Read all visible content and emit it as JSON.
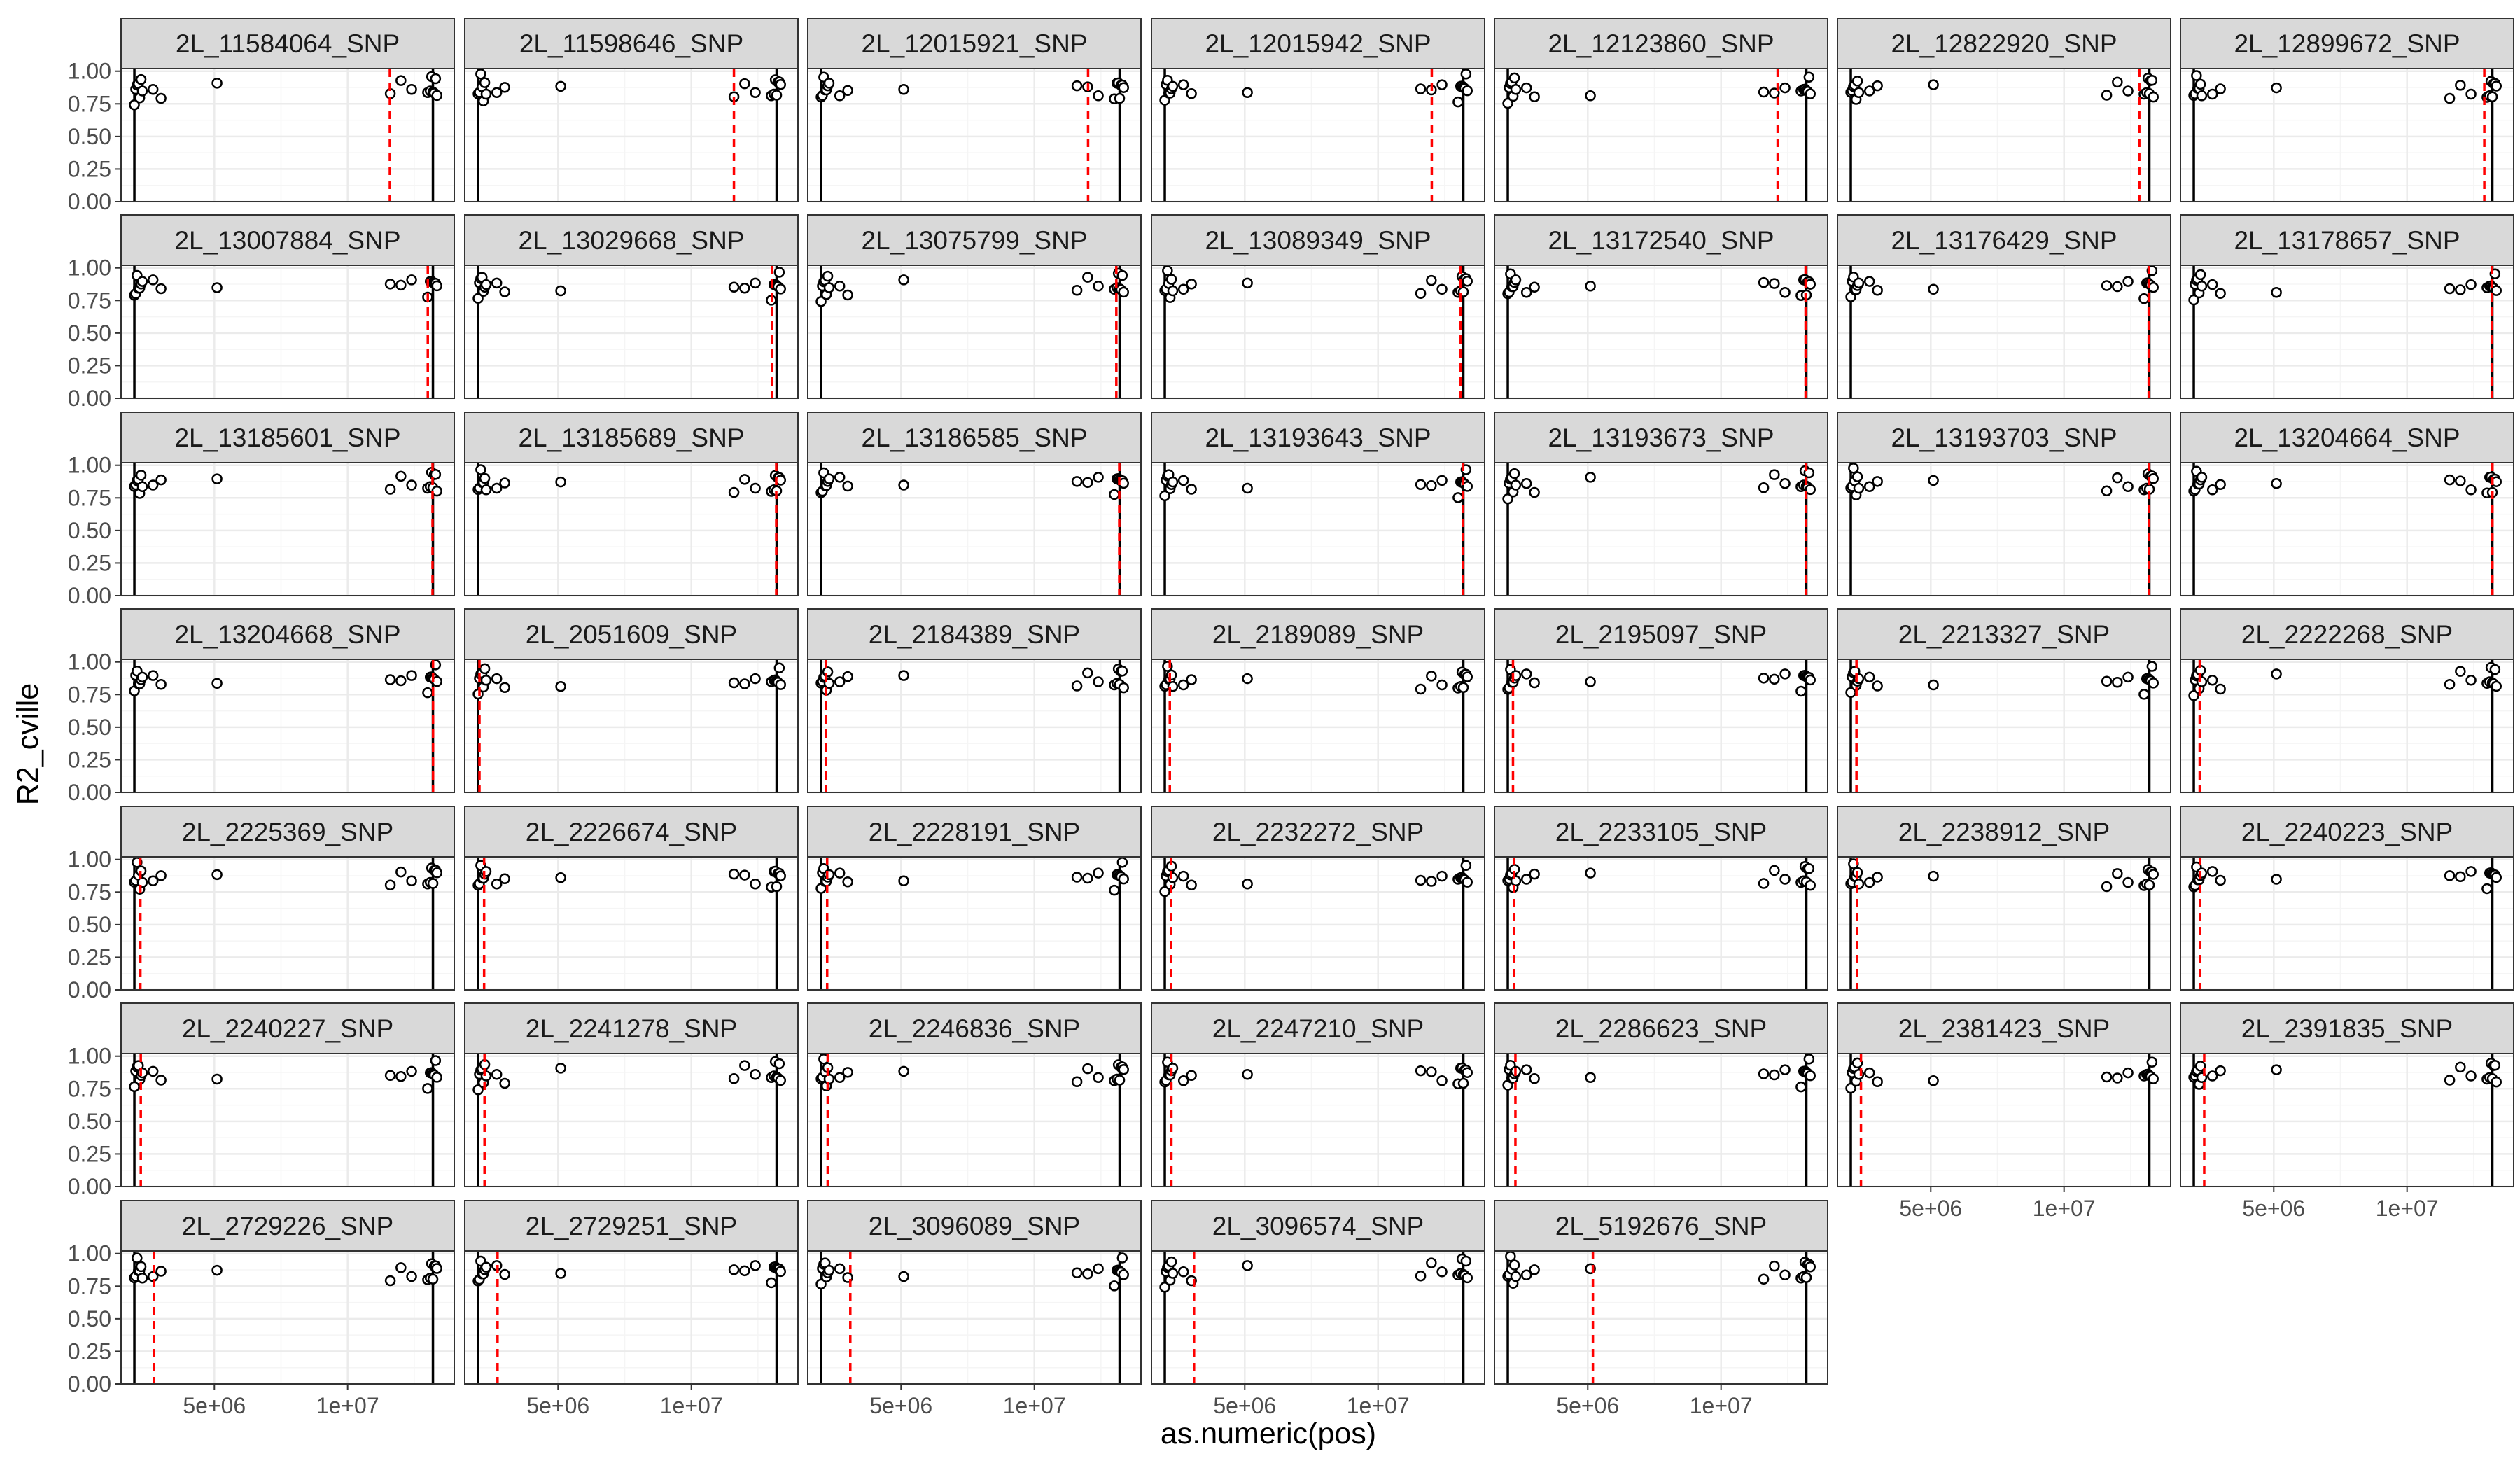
{
  "chart_data": {
    "type": "scatter",
    "facet_by": "SNP",
    "xlabel": "as.numeric(pos)",
    "ylabel": "R2_cville",
    "x_tick_labels": [
      "5e+06",
      "1e+07"
    ],
    "x_ticks": [
      5000000,
      10000000
    ],
    "xlim": [
      1500000,
      14000000
    ],
    "y_ticks": [
      0,
      0.25,
      0.5,
      0.75,
      1
    ],
    "y_tick_labels": [
      "0.00",
      "0.25",
      "0.50",
      "0.75",
      "1.00"
    ],
    "ylim": [
      0,
      1.02
    ],
    "grid": true,
    "boundary_lines": [
      2000000,
      13200000
    ],
    "marker_line": "red dashed vertical line at SNP position",
    "point_clusters": [
      {
        "x": [
          2000000,
          2050000,
          2100000,
          2150000,
          2200000,
          2250000,
          2300000
        ],
        "base": [
          0.79,
          0.85,
          0.93,
          0.88,
          0.82,
          0.9,
          0.86
        ]
      },
      {
        "x": [
          2700000,
          3000000
        ],
        "base": [
          0.86,
          0.84
        ]
      },
      {
        "x": [
          5100000
        ],
        "base": [
          0.86
        ]
      },
      {
        "x": [
          11600000,
          12000000,
          12400000
        ],
        "base": [
          0.84,
          0.88,
          0.86
        ]
      },
      {
        "x": [
          13000000,
          13100000,
          13150000,
          13200000,
          13250000,
          13300000,
          13350000
        ],
        "base": [
          0.8,
          0.86,
          0.91,
          0.84,
          0.88,
          0.93,
          0.85
        ]
      }
    ],
    "panels": [
      {
        "snp": "2L_11584064_SNP",
        "pos": 11584064
      },
      {
        "snp": "2L_11598646_SNP",
        "pos": 11598646
      },
      {
        "snp": "2L_12015921_SNP",
        "pos": 12015921
      },
      {
        "snp": "2L_12015942_SNP",
        "pos": 12015942
      },
      {
        "snp": "2L_12123860_SNP",
        "pos": 12123860
      },
      {
        "snp": "2L_12822920_SNP",
        "pos": 12822920
      },
      {
        "snp": "2L_12899672_SNP",
        "pos": 12899672
      },
      {
        "snp": "2L_13007884_SNP",
        "pos": 13007884
      },
      {
        "snp": "2L_13029668_SNP",
        "pos": 13029668
      },
      {
        "snp": "2L_13075799_SNP",
        "pos": 13075799
      },
      {
        "snp": "2L_13089349_SNP",
        "pos": 13089349
      },
      {
        "snp": "2L_13172540_SNP",
        "pos": 13172540
      },
      {
        "snp": "2L_13176429_SNP",
        "pos": 13176429
      },
      {
        "snp": "2L_13178657_SNP",
        "pos": 13178657
      },
      {
        "snp": "2L_13185601_SNP",
        "pos": 13185601
      },
      {
        "snp": "2L_13185689_SNP",
        "pos": 13185689
      },
      {
        "snp": "2L_13186585_SNP",
        "pos": 13186585
      },
      {
        "snp": "2L_13193643_SNP",
        "pos": 13193643
      },
      {
        "snp": "2L_13193673_SNP",
        "pos": 13193673
      },
      {
        "snp": "2L_13193703_SNP",
        "pos": 13193703
      },
      {
        "snp": "2L_13204664_SNP",
        "pos": 13204664
      },
      {
        "snp": "2L_13204668_SNP",
        "pos": 13204668
      },
      {
        "snp": "2L_2051609_SNP",
        "pos": 2051609
      },
      {
        "snp": "2L_2184389_SNP",
        "pos": 2184389
      },
      {
        "snp": "2L_2189089_SNP",
        "pos": 2189089
      },
      {
        "snp": "2L_2195097_SNP",
        "pos": 2195097
      },
      {
        "snp": "2L_2213327_SNP",
        "pos": 2213327
      },
      {
        "snp": "2L_2222268_SNP",
        "pos": 2222268
      },
      {
        "snp": "2L_2225369_SNP",
        "pos": 2225369
      },
      {
        "snp": "2L_2226674_SNP",
        "pos": 2226674
      },
      {
        "snp": "2L_2228191_SNP",
        "pos": 2228191
      },
      {
        "snp": "2L_2232272_SNP",
        "pos": 2232272
      },
      {
        "snp": "2L_2233105_SNP",
        "pos": 2233105
      },
      {
        "snp": "2L_2238912_SNP",
        "pos": 2238912
      },
      {
        "snp": "2L_2240223_SNP",
        "pos": 2240223
      },
      {
        "snp": "2L_2240227_SNP",
        "pos": 2240227
      },
      {
        "snp": "2L_2241278_SNP",
        "pos": 2241278
      },
      {
        "snp": "2L_2246836_SNP",
        "pos": 2246836
      },
      {
        "snp": "2L_2247210_SNP",
        "pos": 2247210
      },
      {
        "snp": "2L_2286623_SNP",
        "pos": 2286623
      },
      {
        "snp": "2L_2381423_SNP",
        "pos": 2381423
      },
      {
        "snp": "2L_2391835_SNP",
        "pos": 2391835
      },
      {
        "snp": "2L_2729226_SNP",
        "pos": 2729226
      },
      {
        "snp": "2L_2729251_SNP",
        "pos": 2729251
      },
      {
        "snp": "2L_3096089_SNP",
        "pos": 3096089
      },
      {
        "snp": "2L_3096574_SNP",
        "pos": 3096574
      },
      {
        "snp": "2L_5192676_SNP",
        "pos": 5192676
      }
    ]
  },
  "colors": {
    "strip_fill": "#d9d9d9",
    "panel_border": "#333333",
    "grid_major": "#ebebeb",
    "grid_minor": "#f5f5f5",
    "point_stroke": "#000000",
    "marker_line": "#ff0000",
    "boundary_line": "#000000"
  }
}
